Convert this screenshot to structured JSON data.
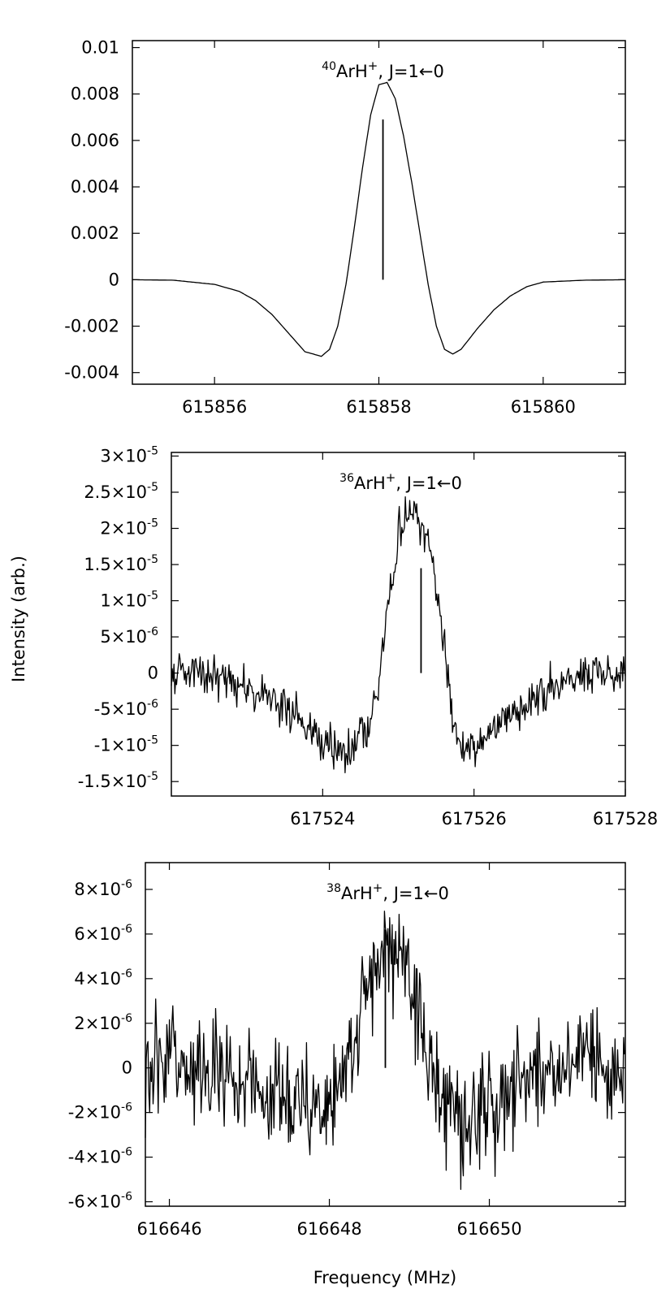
{
  "figure": {
    "ylabel": "Intensity (arb.)",
    "xlabel": "Frequency (MHz)"
  },
  "chart_data": [
    {
      "type": "line",
      "title": {
        "isotope": "40",
        "species": "ArH",
        "charge": "+",
        "transition": ", J=1←0"
      },
      "xlim": [
        615855.0,
        615861.0
      ],
      "ylim": [
        -0.0045,
        0.0103
      ],
      "xticks": [
        615856,
        615858,
        615860
      ],
      "xtick_labels": [
        "615856",
        "615858",
        "615860"
      ],
      "yticks": [
        0.01,
        0.008,
        0.006,
        0.004,
        0.002,
        0,
        -0.002,
        -0.004
      ],
      "ytick_labels": [
        "0.01",
        "0.008",
        "0.006",
        "0.004",
        "0.002",
        "0",
        "-0.002",
        "-0.004"
      ],
      "stick": {
        "x": 615858.05,
        "y0": 0,
        "y1": 0.0069
      },
      "series": [
        {
          "x": [
            615855.0,
            615855.5,
            615856.0,
            615856.3,
            615856.5,
            615856.7,
            615856.9,
            615857.1,
            615857.3,
            615857.4,
            615857.5,
            615857.6,
            615857.7,
            615857.8,
            615857.9,
            615858.0,
            615858.1,
            615858.2,
            615858.3,
            615858.4,
            615858.5,
            615858.6,
            615858.7,
            615858.8,
            615858.9,
            615859.0,
            615859.2,
            615859.4,
            615859.6,
            615859.8,
            615860.0,
            615860.5,
            615861.0
          ],
          "y": [
            0.0,
            -2e-05,
            -0.0002,
            -0.0005,
            -0.0009,
            -0.0015,
            -0.0023,
            -0.0031,
            -0.0033,
            -0.003,
            -0.002,
            -0.0002,
            0.0022,
            0.0048,
            0.0071,
            0.0084,
            0.0085,
            0.0078,
            0.0062,
            0.0042,
            0.002,
            -0.0002,
            -0.002,
            -0.003,
            -0.0032,
            -0.003,
            -0.0021,
            -0.0013,
            -0.0007,
            -0.0003,
            -0.0001,
            -2e-05,
            0.0
          ]
        }
      ]
    },
    {
      "type": "line",
      "title": {
        "isotope": "36",
        "species": "ArH",
        "charge": "+",
        "transition": ", J=1←0"
      },
      "xlim": [
        617522.0,
        617528.0
      ],
      "ylim": [
        -1.7e-05,
        3.05e-05
      ],
      "xticks": [
        617524,
        617526,
        617528
      ],
      "xtick_labels": [
        "617524",
        "617526",
        "617528"
      ],
      "yticks": [
        3e-05,
        2.5e-05,
        2e-05,
        1.5e-05,
        1e-05,
        5e-06,
        0,
        -5e-06,
        -1e-05,
        -1.5e-05
      ],
      "ytick_labels": [
        {
          "m": "3",
          "e": "-5"
        },
        {
          "m": "2.5",
          "e": "-5"
        },
        {
          "m": "2",
          "e": "-5"
        },
        {
          "m": "1.5",
          "e": "-5"
        },
        {
          "m": "1",
          "e": "-5"
        },
        {
          "m": "5",
          "e": "-6"
        },
        {
          "m": "0",
          "e": ""
        },
        {
          "m": "-5",
          "e": "-6"
        },
        {
          "m": "-1",
          "e": "-5"
        },
        {
          "m": "-1.5",
          "e": "-5"
        }
      ],
      "stick": {
        "x": 617525.3,
        "y0": 0,
        "y1": 1.45e-05
      },
      "series": [
        {
          "x": [
            617522.0,
            617522.3,
            617522.6,
            617522.9,
            617523.2,
            617523.5,
            617523.8,
            617524.0,
            617524.2,
            617524.4,
            617524.6,
            617524.75,
            617524.9,
            617525.0,
            617525.1,
            617525.2,
            617525.3,
            617525.4,
            617525.5,
            617525.6,
            617525.7,
            617525.8,
            617526.0,
            617526.2,
            617526.5,
            617526.8,
            617527.1,
            617527.4,
            617527.7,
            617528.0
          ],
          "y": [
            0.0,
            0.0,
            -5e-07,
            -1.5e-06,
            -3e-06,
            -5e-06,
            -7.5e-06,
            -9.5e-06,
            -1.05e-05,
            -1.05e-05,
            -7e-06,
            0.0,
            1.3e-05,
            1.9e-05,
            2.1e-05,
            2.2e-05,
            2.1e-05,
            1.9e-05,
            1.3e-05,
            4e-06,
            -5e-06,
            -1e-05,
            -1.05e-05,
            -8e-06,
            -5.5e-06,
            -3.5e-06,
            -2e-06,
            -8e-07,
            0.0,
            0.0
          ]
        }
      ]
    },
    {
      "type": "line",
      "title": {
        "isotope": "38",
        "species": "ArH",
        "charge": "+",
        "transition": ", J=1←0"
      },
      "xlim": [
        616645.7,
        616651.7
      ],
      "ylim": [
        -6.2e-06,
        9.2e-06
      ],
      "xticks": [
        616646,
        616648,
        616650
      ],
      "xtick_labels": [
        "616646",
        "616648",
        "616650"
      ],
      "yticks": [
        8e-06,
        6e-06,
        4e-06,
        2e-06,
        0,
        -2e-06,
        -4e-06,
        -6e-06
      ],
      "ytick_labels": [
        {
          "m": "8",
          "e": "-6"
        },
        {
          "m": "6",
          "e": "-6"
        },
        {
          "m": "4",
          "e": "-6"
        },
        {
          "m": "2",
          "e": "-6"
        },
        {
          "m": "0",
          "e": ""
        },
        {
          "m": "-2",
          "e": "-6"
        },
        {
          "m": "-4",
          "e": "-6"
        },
        {
          "m": "-6",
          "e": "-6"
        }
      ],
      "stick": {
        "x": 616648.7,
        "y0": 0,
        "y1": 6.2e-06
      },
      "series": [
        {
          "x": [
            616645.7,
            616646.0,
            616646.3,
            616646.6,
            616646.9,
            616647.2,
            616647.5,
            616647.8,
            616648.0,
            616648.2,
            616648.4,
            616648.6,
            616648.75,
            616648.9,
            616649.05,
            616649.2,
            616649.4,
            616649.6,
            616649.8,
            616650.0,
            616650.3,
            616650.6,
            616650.9,
            616651.2,
            616651.5,
            616651.7
          ],
          "y": [
            0.0,
            0.0,
            0.0,
            -2e-07,
            -5e-07,
            -9e-07,
            -1.3e-06,
            -1.7e-06,
            -1.5e-06,
            0.0,
            2.5e-06,
            4.5e-06,
            5.8e-06,
            5.2e-06,
            3.5e-06,
            1e-06,
            -1.2e-06,
            -2.2e-06,
            -2.6e-06,
            -2.2e-06,
            -1e-06,
            -3e-07,
            0.0,
            3e-07,
            2e-07,
            0.0
          ]
        }
      ]
    }
  ]
}
